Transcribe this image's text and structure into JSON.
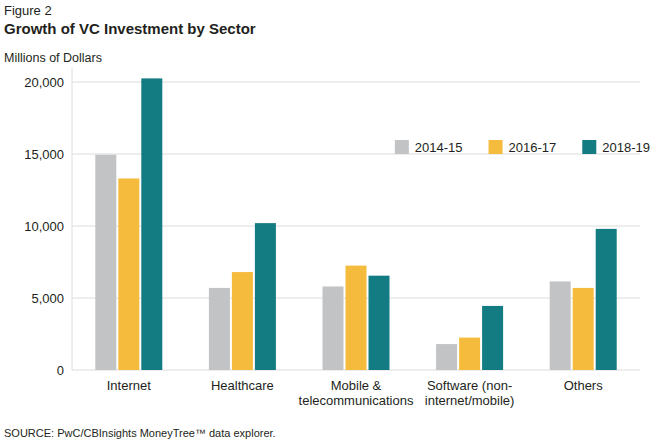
{
  "chart_data": {
    "type": "bar",
    "figure_label": "Figure 2",
    "title": "Growth of VC Investment by Sector",
    "y_label": "Millions of Dollars",
    "source": "SOURCE: PwC/CBInsights MoneyTree™ data explorer.",
    "categories": [
      "Internet",
      "Healthcare",
      "Mobile & telecommunications",
      "Software (non-internet/mobile)",
      "Others"
    ],
    "series": [
      {
        "name": "2014-15",
        "color": "#c1c3c5",
        "values": [
          14950,
          5700,
          5800,
          1800,
          6150
        ]
      },
      {
        "name": "2016-17",
        "color": "#f5bb3c",
        "values": [
          13300,
          6800,
          7250,
          2250,
          5700
        ]
      },
      {
        "name": "2018-19",
        "color": "#137b82",
        "values": [
          20250,
          10200,
          6550,
          4450,
          9800
        ]
      }
    ],
    "ylim": [
      0,
      21000
    ],
    "yticks": [
      0,
      {
        "value": 5000,
        "label": "5,000"
      },
      {
        "value": 10000,
        "label": "10,000"
      },
      {
        "value": 15000,
        "label": "15,000"
      },
      {
        "value": 20000,
        "label": "20,000"
      }
    ],
    "grid": true,
    "legend": "top-right"
  }
}
